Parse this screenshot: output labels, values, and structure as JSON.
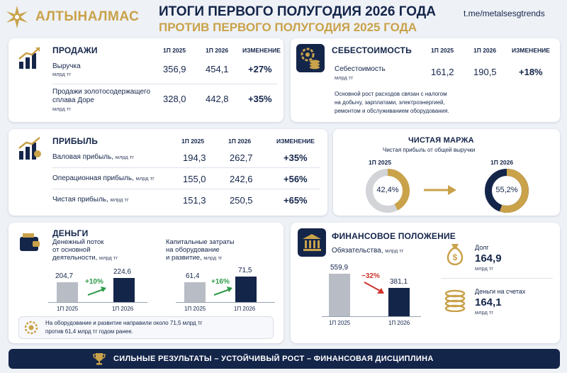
{
  "header": {
    "brand": "АЛТЫНАЛМАС",
    "title_line1": "ИТОГИ ПЕРВОГО ПОЛУГОДИЯ 2026 ГОДА",
    "title_line2": "ПРОТИВ ПЕРВОГО ПОЛУГОДИЯ 2025 ГОДА",
    "channel": "t.me/metalsesgtrends"
  },
  "sales": {
    "title": "ПРОДАЖИ",
    "col1": "1П 2025",
    "col2": "1П 2026",
    "col3": "ИЗМЕНЕНИЕ",
    "rows": [
      {
        "label": "Выручка",
        "unit": "млрд тг",
        "v2025": "356,9",
        "v2026": "454,1",
        "change": "+27%"
      },
      {
        "label_line1": "Продажи золотосодержащего",
        "label_line2": "сплава Доре",
        "unit": "млрд тг",
        "v2025": "328,0",
        "v2026": "442,8",
        "change": "+35%"
      }
    ]
  },
  "cost": {
    "title": "СЕБЕСТОИМОСТЬ",
    "col1": "1П 2025",
    "col2": "1П 2026",
    "col3": "ИЗМЕНЕНИЕ",
    "label": "Себестоимость",
    "unit": "млрд тг",
    "v2025": "161,2",
    "v2026": "190,5",
    "change": "+18%",
    "note_line1": "Основной рост расходов связан с налогом",
    "note_line2": "на добычу, зарплатами, электроэнергией,",
    "note_line3": "ремонтом и обслуживанием оборудования."
  },
  "profit": {
    "title": "ПРИБЫЛЬ",
    "col1": "1П 2025",
    "col2": "1П 2026",
    "col3": "ИЗМЕНЕНИЕ",
    "rows": [
      {
        "label": "Валовая прибыль,",
        "unit": "млрд тг",
        "v2025": "194,3",
        "v2026": "262,7",
        "change": "+35%"
      },
      {
        "label": "Операционная прибыль,",
        "unit": "млрд тг",
        "v2025": "155,0",
        "v2026": "242,6",
        "change": "+56%"
      },
      {
        "label": "Чистая прибыль,",
        "unit": "млрд тг",
        "v2025": "151,3",
        "v2026": "250,5",
        "change": "+65%"
      }
    ]
  },
  "margin": {
    "title": "ЧИСТАЯ МАРЖА",
    "subtitle": "Чистая прибыль от общей выручки",
    "label2025": "1П 2025",
    "label2026": "1П 2026",
    "value2025_text": "42,4%",
    "value2026_text": "55,2%",
    "value2025": 42.4,
    "value2026": 55.2
  },
  "money": {
    "title": "ДЕНЬГИ",
    "cashflow_line1": "Денежный поток",
    "cashflow_line2": "от основной",
    "cashflow_line3": "деятельности,",
    "cashflow_unit": "млрд тг",
    "cashflow_2025": "204,7",
    "cashflow_2026": "224,6",
    "cashflow_change": "+10%",
    "capex_line1": "Капитальные затраты",
    "capex_line2": "на оборудование",
    "capex_line3": "и развитие,",
    "capex_unit": "млрд тг",
    "capex_2025": "61,4",
    "capex_2026": "71,5",
    "capex_change": "+16%",
    "xlabel_2025": "1П 2025",
    "xlabel_2026": "1П 2026",
    "note_line1": "На оборудование и развитие направили около 71,5 млрд тг",
    "note_line2": "против 61,4 млрд тг годом ранее."
  },
  "finance": {
    "title": "ФИНАНСОВОЕ ПОЛОЖЕНИЕ",
    "liabilities_label": "Обязательства,",
    "liabilities_unit": "млрд тг",
    "liab_2025": "559,9",
    "liab_2026": "381,1",
    "liab_change": "−32%",
    "xlabel_2025": "1П 2025",
    "xlabel_2026": "1П 2026",
    "debt_label": "Долг",
    "debt_value": "164,9",
    "debt_unit": "млрд тг",
    "cash_label": "Деньги на счетах",
    "cash_value": "164,1",
    "cash_unit": "млрд тг"
  },
  "footer": {
    "text": "СИЛЬНЫЕ РЕЗУЛЬТАТЫ – УСТОЙЧИВЫЙ РОСТ – ФИНАНСОВАЯ ДИСЦИПЛИНА"
  },
  "colors": {
    "navy": "#14254a",
    "gold": "#c9a24a",
    "green": "#2e9a4a",
    "red": "#d0342c",
    "grey": "#b8bcc4"
  },
  "icons": [
    "star-logo-icon",
    "growth-chart-icon",
    "gear-coins-icon",
    "profit-chart-icon",
    "wallet-icon",
    "bank-icon",
    "money-bag-icon",
    "coins-stack-icon",
    "trophy-icon",
    "gear-coin-note-icon"
  ]
}
